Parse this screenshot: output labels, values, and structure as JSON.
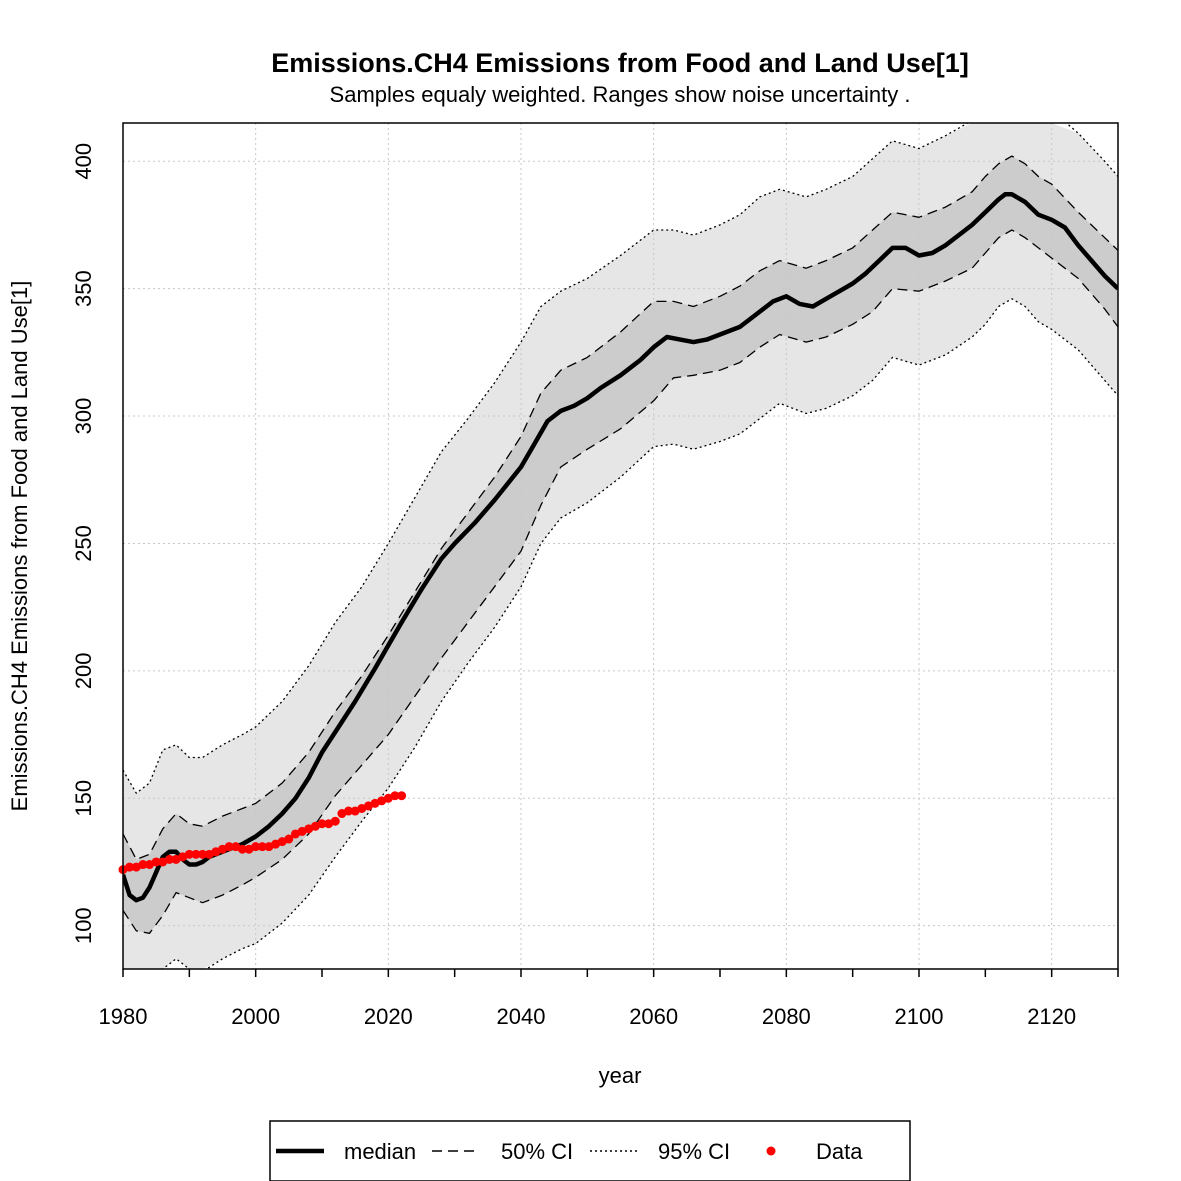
{
  "chart_data": {
    "type": "line",
    "title": "Emissions.CH4 Emissions from Food and Land Use[1]",
    "subtitle": "Samples equaly weighted. Ranges show  noise uncertainty .",
    "xlabel": "year",
    "ylabel": "Emissions.CH4 Emissions from Food and Land Use[1]",
    "xlim": [
      1980,
      2130
    ],
    "ylim": [
      83,
      415
    ],
    "xticks": [
      1980,
      2000,
      2020,
      2040,
      2060,
      2080,
      2100,
      2120
    ],
    "yticks": [
      100,
      150,
      200,
      250,
      300,
      350,
      400
    ],
    "grid": true,
    "legend_position": "bottom",
    "legend": [
      "median",
      "50% CI",
      "95% CI",
      "Data"
    ],
    "colors": {
      "median": "#000000",
      "band95": "#e6e6e6",
      "band50": "#cccccc",
      "data": "#ff0000",
      "grid": "#c8c8c8"
    },
    "series": [
      {
        "name": "median",
        "x": [
          1980,
          1981,
          1982,
          1983,
          1984,
          1985,
          1986,
          1987,
          1988,
          1989,
          1990,
          1991,
          1992,
          1993,
          1994,
          1995,
          1996,
          1998,
          2000,
          2002,
          2004,
          2006,
          2008,
          2010,
          2012,
          2015,
          2018,
          2020,
          2022,
          2025,
          2028,
          2030,
          2033,
          2036,
          2040,
          2042,
          2044,
          2046,
          2048,
          2050,
          2052,
          2055,
          2058,
          2060,
          2062,
          2064,
          2066,
          2068,
          2070,
          2073,
          2076,
          2078,
          2080,
          2082,
          2084,
          2086,
          2088,
          2090,
          2092,
          2094,
          2096,
          2098,
          2100,
          2102,
          2104,
          2106,
          2108,
          2110,
          2112,
          2113,
          2114,
          2116,
          2118,
          2120,
          2122,
          2124,
          2126,
          2128,
          2130
        ],
        "y": [
          120,
          112,
          110,
          111,
          115,
          121,
          127,
          129,
          129,
          126,
          124,
          124,
          125,
          127,
          128,
          129,
          130,
          132,
          135,
          139,
          144,
          150,
          158,
          168,
          176,
          188,
          201,
          210,
          219,
          232,
          244,
          250,
          258,
          267,
          280,
          289,
          298,
          302,
          304,
          307,
          311,
          316,
          322,
          327,
          331,
          330,
          329,
          330,
          332,
          335,
          341,
          345,
          347,
          344,
          343,
          346,
          349,
          352,
          356,
          361,
          366,
          366,
          363,
          364,
          367,
          371,
          375,
          380,
          385,
          387,
          387,
          384,
          379,
          377,
          374,
          367,
          361,
          355,
          350
        ]
      },
      {
        "name": "50% CI upper",
        "x": [
          1980,
          1982,
          1984,
          1986,
          1988,
          1990,
          1992,
          1995,
          1998,
          2000,
          2004,
          2008,
          2012,
          2016,
          2020,
          2024,
          2028,
          2032,
          2036,
          2040,
          2043,
          2046,
          2050,
          2055,
          2060,
          2063,
          2066,
          2070,
          2073,
          2076,
          2079,
          2083,
          2086,
          2090,
          2093,
          2096,
          2100,
          2104,
          2108,
          2110,
          2112,
          2114,
          2116,
          2118,
          2120,
          2124,
          2128,
          2130
        ],
        "y": [
          136,
          126,
          128,
          138,
          144,
          140,
          139,
          143,
          146,
          148,
          156,
          168,
          184,
          198,
          214,
          231,
          248,
          262,
          276,
          292,
          309,
          318,
          323,
          333,
          345,
          345,
          343,
          347,
          351,
          357,
          361,
          358,
          361,
          366,
          373,
          380,
          378,
          382,
          388,
          394,
          399,
          402,
          399,
          394,
          391,
          380,
          370,
          365
        ]
      },
      {
        "name": "50% CI lower",
        "x": [
          1980,
          1982,
          1984,
          1986,
          1988,
          1990,
          1992,
          1995,
          1998,
          2000,
          2004,
          2008,
          2012,
          2016,
          2020,
          2024,
          2028,
          2032,
          2036,
          2040,
          2043,
          2046,
          2050,
          2055,
          2060,
          2063,
          2066,
          2070,
          2073,
          2076,
          2079,
          2083,
          2086,
          2090,
          2093,
          2096,
          2100,
          2104,
          2108,
          2110,
          2112,
          2114,
          2116,
          2118,
          2120,
          2124,
          2128,
          2130
        ],
        "y": [
          106,
          98,
          97,
          104,
          113,
          111,
          109,
          112,
          116,
          119,
          126,
          136,
          151,
          163,
          175,
          190,
          205,
          219,
          233,
          247,
          265,
          280,
          287,
          295,
          306,
          315,
          316,
          318,
          321,
          327,
          332,
          329,
          331,
          336,
          341,
          350,
          349,
          353,
          358,
          364,
          370,
          373,
          370,
          366,
          362,
          354,
          342,
          335
        ]
      },
      {
        "name": "95% CI upper",
        "x": [
          1980,
          1982,
          1984,
          1986,
          1988,
          1990,
          1992,
          1995,
          1998,
          2000,
          2004,
          2008,
          2012,
          2016,
          2020,
          2024,
          2028,
          2032,
          2036,
          2040,
          2043,
          2046,
          2050,
          2055,
          2060,
          2063,
          2066,
          2070,
          2073,
          2076,
          2079,
          2083,
          2086,
          2090,
          2093,
          2096,
          2100,
          2104,
          2108,
          2110,
          2112,
          2114,
          2116,
          2118,
          2120,
          2124,
          2128,
          2130
        ],
        "y": [
          161,
          152,
          156,
          169,
          171,
          166,
          166,
          171,
          175,
          178,
          188,
          202,
          219,
          233,
          250,
          268,
          286,
          299,
          313,
          329,
          343,
          349,
          354,
          363,
          373,
          373,
          371,
          375,
          379,
          386,
          389,
          386,
          389,
          394,
          401,
          408,
          405,
          410,
          416,
          418,
          420,
          420,
          420,
          420,
          420,
          411,
          400,
          394
        ]
      },
      {
        "name": "95% CI lower",
        "x": [
          1980,
          1982,
          1984,
          1986,
          1988,
          1990,
          1992,
          1995,
          1998,
          2000,
          2004,
          2008,
          2012,
          2016,
          2020,
          2024,
          2028,
          2032,
          2036,
          2040,
          2043,
          2046,
          2050,
          2055,
          2060,
          2063,
          2066,
          2070,
          2073,
          2076,
          2079,
          2083,
          2086,
          2090,
          2093,
          2096,
          2100,
          2104,
          2108,
          2110,
          2112,
          2114,
          2116,
          2118,
          2120,
          2124,
          2128,
          2130
        ],
        "y": [
          70,
          70,
          74,
          83,
          87,
          83,
          82,
          87,
          91,
          93,
          101,
          112,
          127,
          141,
          154,
          170,
          188,
          203,
          217,
          233,
          250,
          260,
          266,
          276,
          288,
          289,
          287,
          290,
          293,
          299,
          305,
          301,
          303,
          308,
          314,
          323,
          320,
          324,
          331,
          336,
          343,
          346,
          343,
          337,
          334,
          326,
          314,
          308
        ]
      },
      {
        "name": "Data",
        "x": [
          1980,
          1981,
          1982,
          1983,
          1984,
          1985,
          1986,
          1987,
          1988,
          1989,
          1990,
          1991,
          1992,
          1993,
          1994,
          1995,
          1996,
          1997,
          1998,
          1999,
          2000,
          2001,
          2002,
          2003,
          2004,
          2005,
          2006,
          2007,
          2008,
          2009,
          2010,
          2011,
          2012,
          2013,
          2014,
          2015,
          2016,
          2017,
          2018,
          2019,
          2020,
          2021,
          2022
        ],
        "y": [
          122,
          123,
          123,
          124,
          124,
          125,
          125,
          126,
          126,
          127,
          128,
          128,
          128,
          128,
          129,
          130,
          131,
          131,
          130,
          130,
          131,
          131,
          131,
          132,
          133,
          134,
          136,
          137,
          138,
          139,
          140,
          140,
          141,
          144,
          145,
          145,
          146,
          147,
          148,
          149,
          150,
          151,
          151
        ]
      }
    ]
  }
}
